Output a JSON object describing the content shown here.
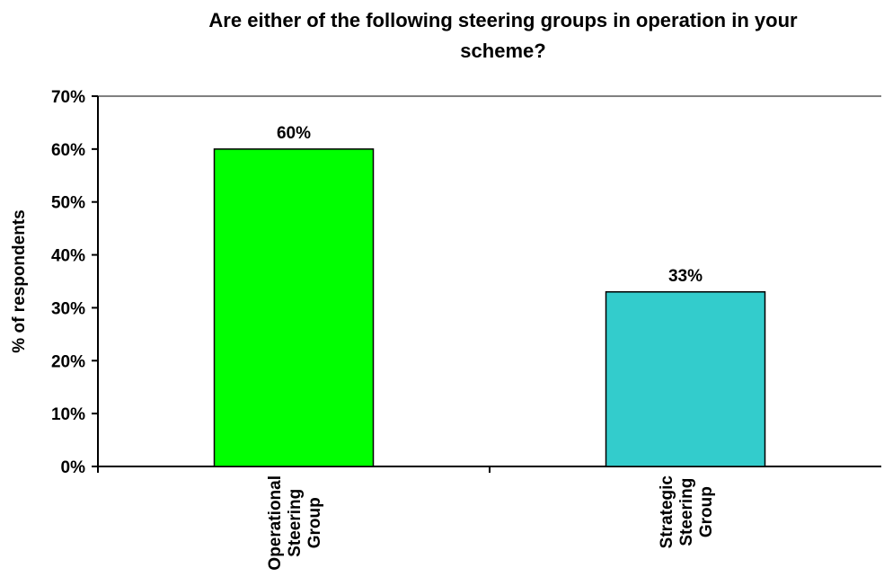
{
  "chart_data": {
    "type": "bar",
    "title": "Are either of the following steering groups in operation in your scheme?",
    "xlabel": "",
    "ylabel": "% of respondents",
    "categories": [
      [
        "Operational",
        "Steering",
        "Group"
      ],
      [
        "Strategic",
        "Steering",
        "Group"
      ]
    ],
    "values": [
      60,
      33
    ],
    "value_labels": [
      "60%",
      "33%"
    ],
    "bar_colors": [
      "#00ff00",
      "#33cccc"
    ],
    "ylim": [
      0,
      70
    ],
    "yticks": [
      0,
      10,
      20,
      30,
      40,
      50,
      60,
      70
    ],
    "ytick_labels": [
      "0%",
      "10%",
      "20%",
      "30%",
      "40%",
      "50%",
      "60%",
      "70%"
    ],
    "grid": false,
    "legend": "none"
  }
}
